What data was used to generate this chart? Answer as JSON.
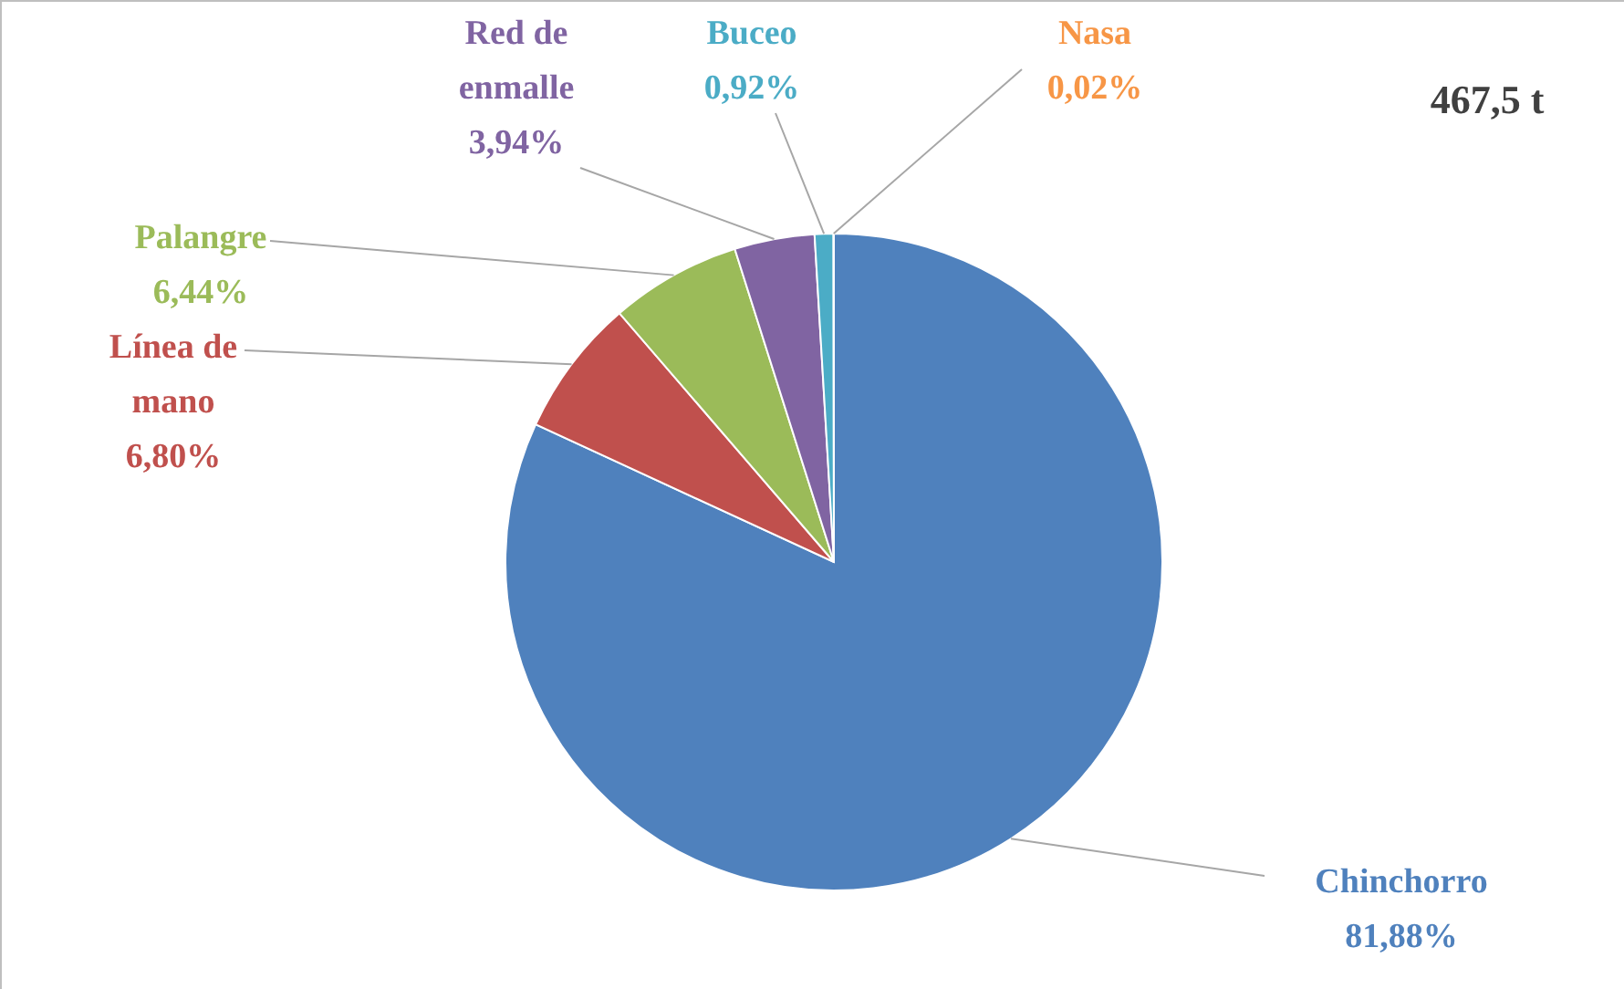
{
  "chart_data": {
    "type": "pie",
    "categories": [
      "Chinchorro",
      "Línea de mano",
      "Palangre",
      "Red de enmalle",
      "Buceo",
      "Nasa"
    ],
    "values": [
      81.88,
      6.8,
      6.44,
      3.94,
      0.92,
      0.02
    ],
    "value_labels": [
      "81,88%",
      "6,80%",
      "6,44%",
      "3,94%",
      "0,92%",
      "0,02%"
    ],
    "colors": [
      "#4f81bd",
      "#c0504d",
      "#9bbb59",
      "#8064a2",
      "#4bacc6",
      "#f79646"
    ],
    "annotations": [
      "467,5 t"
    ]
  }
}
